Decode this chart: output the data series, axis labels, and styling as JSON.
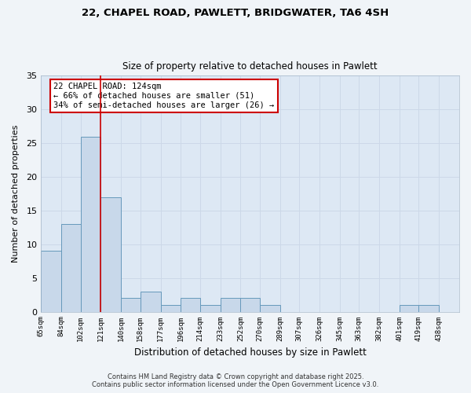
{
  "title_line1": "22, CHAPEL ROAD, PAWLETT, BRIDGWATER, TA6 4SH",
  "title_line2": "Size of property relative to detached houses in Pawlett",
  "xlabel": "Distribution of detached houses by size in Pawlett",
  "ylabel": "Number of detached properties",
  "bar_left_edges": [
    65,
    84,
    102,
    121,
    140,
    158,
    177,
    196,
    214,
    233,
    252,
    270,
    289,
    307,
    326,
    345,
    363,
    382,
    401,
    419
  ],
  "bar_widths": [
    19,
    18,
    19,
    19,
    18,
    19,
    19,
    18,
    19,
    19,
    18,
    19,
    18,
    19,
    19,
    18,
    19,
    19,
    18,
    19
  ],
  "bar_heights": [
    9,
    13,
    26,
    17,
    2,
    3,
    1,
    2,
    1,
    2,
    2,
    1,
    0,
    0,
    0,
    0,
    0,
    0,
    1,
    1
  ],
  "tick_labels": [
    "65sqm",
    "84sqm",
    "102sqm",
    "121sqm",
    "140sqm",
    "158sqm",
    "177sqm",
    "196sqm",
    "214sqm",
    "233sqm",
    "252sqm",
    "270sqm",
    "289sqm",
    "307sqm",
    "326sqm",
    "345sqm",
    "363sqm",
    "382sqm",
    "401sqm",
    "419sqm",
    "438sqm"
  ],
  "tick_positions": [
    65,
    84,
    102,
    121,
    140,
    158,
    177,
    196,
    214,
    233,
    252,
    270,
    289,
    307,
    326,
    345,
    363,
    382,
    401,
    419,
    438
  ],
  "bar_color": "#c8d8ea",
  "bar_edge_color": "#6699bb",
  "reference_line_x": 121,
  "reference_line_color": "#cc0000",
  "ylim": [
    0,
    35
  ],
  "yticks": [
    0,
    5,
    10,
    15,
    20,
    25,
    30,
    35
  ],
  "grid_color": "#ccd8e8",
  "bg_color": "#dde8f4",
  "fig_bg_color": "#f0f4f8",
  "annotation_title": "22 CHAPEL ROAD: 124sqm",
  "annotation_line2": "← 66% of detached houses are smaller (51)",
  "annotation_line3": "34% of semi-detached houses are larger (26) →",
  "footer_line1": "Contains HM Land Registry data © Crown copyright and database right 2025.",
  "footer_line2": "Contains public sector information licensed under the Open Government Licence v3.0."
}
